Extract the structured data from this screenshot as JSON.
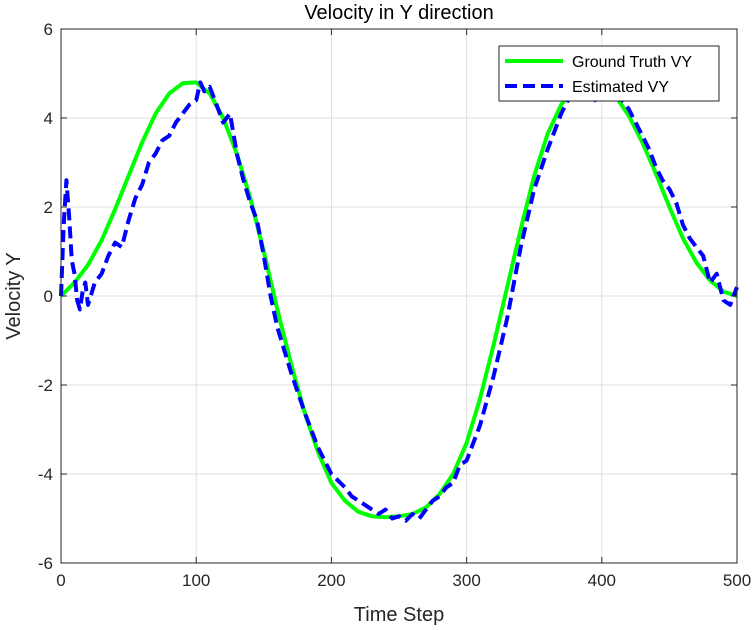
{
  "chart_data": {
    "type": "line",
    "title": "Velocity in Y direction",
    "xlabel": "Time Step",
    "ylabel": "Velocity Y",
    "xlim": [
      0,
      500
    ],
    "ylim": [
      -6,
      6
    ],
    "xticks": [
      0,
      100,
      200,
      300,
      400,
      500
    ],
    "yticks": [
      -6,
      -4,
      -2,
      0,
      2,
      4,
      6
    ],
    "xtick_labels": [
      "0",
      "100",
      "200",
      "300",
      "400",
      "500"
    ],
    "ytick_labels": [
      "-6",
      "-4",
      "-2",
      "0",
      "2",
      "4",
      "6"
    ],
    "grid": true,
    "legend_location": "top-right",
    "series": [
      {
        "name": "Ground Truth VY",
        "color": "#00ff00",
        "style": "solid",
        "x": [
          0,
          10,
          20,
          30,
          40,
          50,
          60,
          70,
          80,
          90,
          100,
          110,
          120,
          130,
          140,
          150,
          160,
          170,
          180,
          190,
          200,
          210,
          220,
          230,
          240,
          250,
          260,
          270,
          280,
          290,
          300,
          310,
          320,
          330,
          340,
          350,
          360,
          370,
          380,
          390,
          400,
          410,
          420,
          430,
          440,
          450,
          460,
          470,
          480,
          490,
          500
        ],
        "values": [
          0,
          0.3,
          0.7,
          1.25,
          1.95,
          2.7,
          3.45,
          4.1,
          4.55,
          4.78,
          4.8,
          4.55,
          4.0,
          3.2,
          2.2,
          1.0,
          -0.3,
          -1.5,
          -2.6,
          -3.5,
          -4.2,
          -4.6,
          -4.85,
          -4.95,
          -4.97,
          -4.95,
          -4.9,
          -4.75,
          -4.45,
          -4.0,
          -3.3,
          -2.3,
          -1.1,
          0.2,
          1.5,
          2.7,
          3.65,
          4.3,
          4.7,
          4.82,
          4.75,
          4.5,
          4.05,
          3.45,
          2.75,
          2.0,
          1.3,
          0.75,
          0.35,
          0.1,
          0.0
        ]
      },
      {
        "name": "Estimated VY",
        "color": "#0000ff",
        "style": "dashed",
        "x": [
          0,
          2,
          4,
          6,
          8,
          10,
          12,
          14,
          16,
          18,
          20,
          25,
          30,
          35,
          40,
          45,
          50,
          55,
          60,
          65,
          70,
          75,
          80,
          85,
          90,
          95,
          100,
          103,
          106,
          110,
          115,
          120,
          125,
          130,
          135,
          140,
          145,
          150,
          155,
          160,
          170,
          180,
          190,
          200,
          210,
          215,
          220,
          225,
          230,
          235,
          240,
          245,
          250,
          255,
          260,
          265,
          270,
          275,
          280,
          285,
          290,
          295,
          300,
          310,
          320,
          330,
          340,
          350,
          360,
          370,
          375,
          380,
          385,
          390,
          395,
          400,
          405,
          410,
          415,
          420,
          425,
          430,
          435,
          440,
          445,
          450,
          455,
          460,
          465,
          470,
          475,
          480,
          485,
          490,
          495,
          500
        ],
        "values": [
          0.0,
          1.6,
          2.6,
          1.8,
          0.8,
          0.5,
          -0.1,
          -0.3,
          0.1,
          0.3,
          -0.2,
          0.3,
          0.5,
          0.9,
          1.2,
          1.1,
          1.7,
          2.2,
          2.5,
          3.0,
          3.2,
          3.5,
          3.6,
          3.9,
          4.1,
          4.3,
          4.4,
          4.8,
          4.6,
          4.7,
          4.3,
          3.9,
          4.1,
          3.2,
          2.6,
          2.1,
          1.7,
          0.9,
          0.0,
          -0.7,
          -1.7,
          -2.6,
          -3.4,
          -4.0,
          -4.3,
          -4.5,
          -4.6,
          -4.7,
          -4.8,
          -4.9,
          -4.8,
          -5.0,
          -4.95,
          -5.05,
          -4.9,
          -5.0,
          -4.8,
          -4.6,
          -4.5,
          -4.3,
          -4.2,
          -3.8,
          -3.7,
          -2.9,
          -1.8,
          -0.5,
          1.1,
          2.4,
          3.3,
          4.1,
          4.4,
          4.6,
          4.6,
          4.5,
          4.4,
          4.7,
          4.8,
          4.6,
          4.4,
          4.2,
          3.9,
          3.6,
          3.3,
          2.9,
          2.6,
          2.4,
          2.1,
          1.6,
          1.3,
          1.1,
          0.9,
          0.3,
          0.5,
          -0.1,
          -0.2,
          0.2
        ]
      }
    ]
  }
}
